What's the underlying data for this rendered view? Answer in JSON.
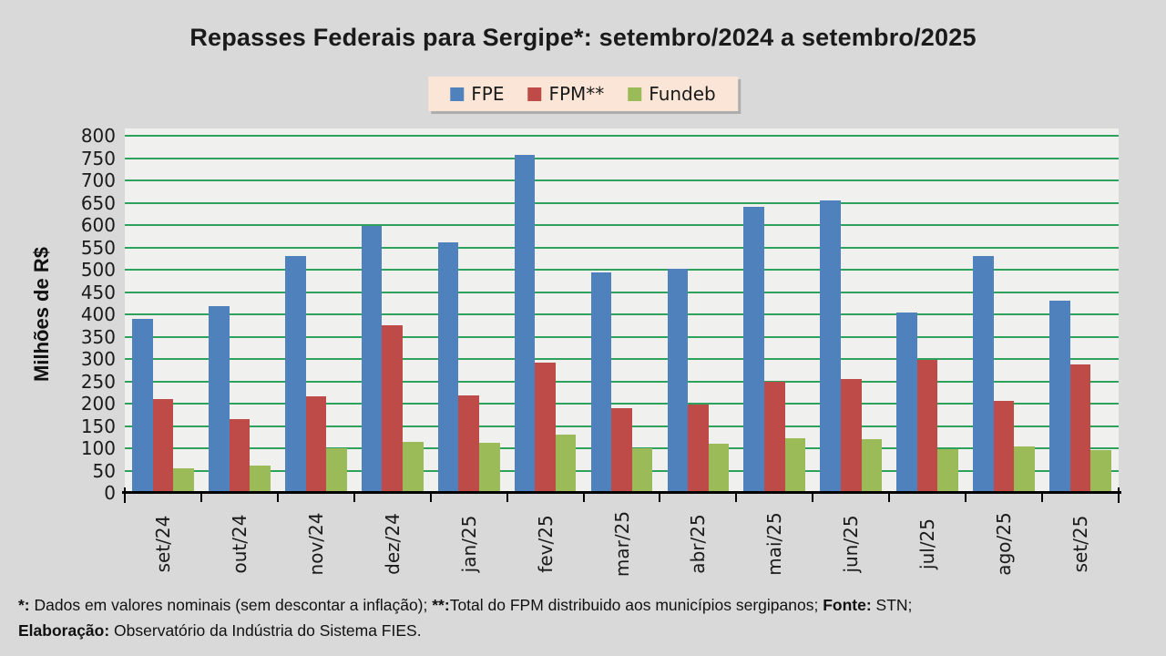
{
  "chart_data": {
    "type": "bar",
    "title": "Repasses Federais para Sergipe*: setembro/2024 a setembro/2025",
    "xlabel": "",
    "ylabel": "Milhões de R$",
    "ylim": [
      0,
      800
    ],
    "ytick_step": 50,
    "grid": true,
    "gridline_color": "#2EA15C",
    "legend_position": "top",
    "categories": [
      "set/24",
      "out/24",
      "nov/24",
      "dez/24",
      "jan/25",
      "fev/25",
      "mar/25",
      "abr/25",
      "mai/25",
      "jun/25",
      "jul/25",
      "ago/25",
      "set/25"
    ],
    "series": [
      {
        "name": "FPE",
        "color": "#4F81BD",
        "values": [
          390,
          419,
          530,
          598,
          562,
          757,
          494,
          502,
          641,
          656,
          404,
          530,
          430
        ]
      },
      {
        "name": "FPM**",
        "color": "#BE4B48",
        "values": [
          211,
          166,
          216,
          375,
          218,
          291,
          189,
          197,
          249,
          256,
          297,
          206,
          287
        ]
      },
      {
        "name": "Fundeb",
        "color": "#9BBB59",
        "values": [
          55,
          61,
          101,
          115,
          113,
          131,
          100,
          110,
          123,
          120,
          97,
          105,
          95
        ]
      }
    ]
  },
  "colors": {
    "page_bg": "#D9D9D9",
    "plot_bg": "#F0F1EF",
    "gridline": "#2EA15C",
    "axis_line": "#000000",
    "text": "#1A1A1A",
    "legend_bg": "#FBE5D6"
  },
  "footnote": {
    "lines": [
      [
        {
          "t": "*:",
          "b": true
        },
        {
          "t": " Dados em valores nominais (sem descontar a inflação); ",
          "b": false
        },
        {
          "t": "**:",
          "b": true
        },
        {
          "t": "Total do FPM distribuido aos municípios sergipanos; ",
          "b": false
        },
        {
          "t": "Fonte:",
          "b": true
        },
        {
          "t": " STN;",
          "b": false
        }
      ],
      [
        {
          "t": "Elaboração:",
          "b": true
        },
        {
          "t": " Observatório da Indústria do Sistema FIES.",
          "b": false
        }
      ]
    ]
  }
}
